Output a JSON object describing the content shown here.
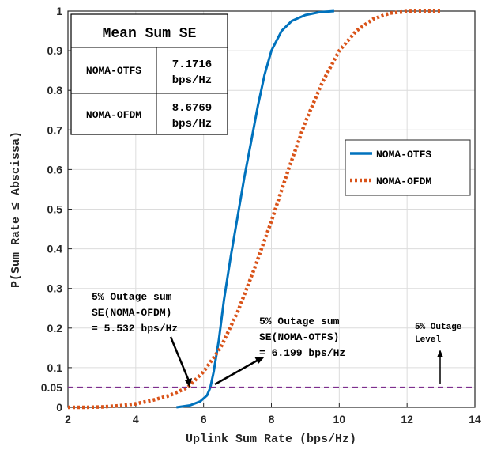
{
  "chart_data": {
    "type": "line",
    "title": "",
    "xlabel": "Uplink Sum Rate (bps/Hz)",
    "ylabel": "P(Sum Rate ≤ Abscissa)",
    "xlim": [
      2,
      14
    ],
    "ylim": [
      0,
      1
    ],
    "x_ticks": [
      2,
      4,
      6,
      8,
      10,
      12,
      14
    ],
    "y_ticks": [
      0,
      0.05,
      0.1,
      0.2,
      0.3,
      0.4,
      0.5,
      0.6,
      0.7,
      0.8,
      0.9,
      1
    ],
    "grid": true,
    "legend_position": "right",
    "series": [
      {
        "name": "NOMA-OTFS",
        "color": "#0072BD",
        "style": "solid",
        "x": [
          5.2,
          5.6,
          5.9,
          6.1,
          6.199,
          6.3,
          6.45,
          6.6,
          6.8,
          7.0,
          7.2,
          7.4,
          7.6,
          7.8,
          8.0,
          8.3,
          8.6,
          9.0,
          9.4,
          9.85
        ],
        "y": [
          0,
          0.005,
          0.015,
          0.03,
          0.05,
          0.09,
          0.17,
          0.27,
          0.38,
          0.48,
          0.58,
          0.67,
          0.76,
          0.84,
          0.9,
          0.95,
          0.975,
          0.99,
          0.997,
          1
        ]
      },
      {
        "name": "NOMA-OFDM",
        "color": "#D95319",
        "style": "dotted",
        "x": [
          2,
          2.5,
          3,
          3.5,
          4,
          4.5,
          5,
          5.532,
          6,
          6.5,
          7,
          7.5,
          8,
          8.5,
          9,
          9.5,
          10,
          10.5,
          11,
          11.5,
          12,
          12.5,
          13
        ],
        "y": [
          0,
          0,
          0.001,
          0.004,
          0.009,
          0.018,
          0.03,
          0.05,
          0.09,
          0.15,
          0.24,
          0.35,
          0.47,
          0.6,
          0.72,
          0.82,
          0.9,
          0.95,
          0.98,
          0.995,
          0.999,
          1,
          1
        ]
      },
      {
        "name": "5% Outage Level",
        "color": "#7E2F8E",
        "style": "dashed",
        "x": [
          2,
          14
        ],
        "y": [
          0.05,
          0.05
        ]
      }
    ],
    "table": {
      "title": "Mean Sum SE",
      "rows": [
        {
          "label": "NOMA-OTFS",
          "value_line1": "7.1716",
          "value_line2": "bps/Hz"
        },
        {
          "label": "NOMA-OFDM",
          "value_line1": "8.6769",
          "value_line2": "bps/Hz"
        }
      ]
    },
    "legend": [
      {
        "label": "NOMA-OTFS",
        "color": "#0072BD",
        "style": "solid"
      },
      {
        "label": "NOMA-OFDM",
        "color": "#D95319",
        "style": "dotted"
      }
    ],
    "annotations": [
      {
        "lines": [
          "5% Outage sum",
          "SE(NOMA-OFDM)",
          "= 5.532 bps/Hz"
        ],
        "point": [
          5.532,
          0.05
        ]
      },
      {
        "lines": [
          "5% Outage sum",
          "SE(NOMA-OTFS)",
          "= 6.199 bps/Hz"
        ],
        "point": [
          6.199,
          0.05
        ]
      },
      {
        "lines": [
          "5% Outage",
          "Level"
        ],
        "point": [
          12.5,
          0.05
        ]
      }
    ]
  }
}
